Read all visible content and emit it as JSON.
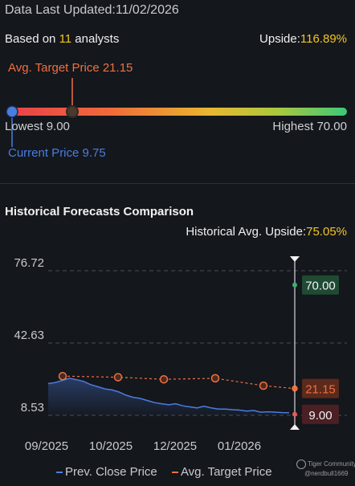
{
  "header": {
    "updated_label": "Data Last Updated:",
    "updated_date": "11/02/2026",
    "based_prefix": "Based on ",
    "analyst_count": "11",
    "based_suffix": " analysts",
    "upside_label": "Upside:",
    "upside_value": "116.89%"
  },
  "price_range": {
    "avg_target_label": "Avg. Target Price 21.15",
    "lowest_label": "Lowest 9.00",
    "highest_label": "Highest 70.00",
    "current_label": "Current Price 9.75",
    "low": 9.0,
    "high": 70.0,
    "current": 9.75,
    "avg_target": 21.15,
    "gradient_colors": [
      "#e8404a",
      "#f06a3a",
      "#e8b830",
      "#a8c840",
      "#3cc878"
    ]
  },
  "historical": {
    "title": "Historical Forecasts Comparison",
    "avg_upside_label": "Historical Avg. Upside:",
    "avg_upside_value": "75.05%"
  },
  "chart_data": {
    "type": "line",
    "yticks": [
      8.53,
      42.63,
      76.72
    ],
    "ytick_labels": [
      "8.53",
      "42.63",
      "76.72"
    ],
    "ylim": [
      8.53,
      76.72
    ],
    "x_tick_labels": [
      "09/2025",
      "10/2025",
      "12/2025",
      "01/2026"
    ],
    "series": [
      {
        "name": "Prev. Close Price",
        "color": "#4a7de0",
        "values": [
          23.5,
          24.0,
          25.0,
          26.0,
          25.3,
          24.5,
          23.0,
          22.0,
          21.0,
          20.5,
          19.5,
          18.0,
          17.0,
          16.5,
          15.5,
          14.5,
          14.0,
          13.5,
          14.0,
          13.0,
          12.5,
          12.0,
          12.8,
          12.0,
          11.5,
          11.5,
          11.2,
          11.0,
          10.5,
          10.8,
          10.0,
          10.2,
          10.0,
          9.8,
          9.75
        ]
      },
      {
        "name": "Avg. Target Price",
        "color": "#f07040",
        "points": [
          27.0,
          26.5,
          25.5,
          26.0,
          22.5,
          21.15
        ]
      }
    ],
    "forecast_high": {
      "value": 70.0,
      "label": "70.00",
      "color": "#3cb06e",
      "bg": "#1f4a33"
    },
    "forecast_avg": {
      "value": 21.15,
      "label": "21.15",
      "color": "#f07040",
      "bg": "#5a2a1c"
    },
    "forecast_low": {
      "value": 9.0,
      "label": "9.00",
      "color": "#e85a5a",
      "bg": "#4a2024"
    }
  },
  "legend": {
    "close_label": "Prev. Close Price",
    "target_label": "Avg. Target Price"
  },
  "watermark": {
    "brand": "Tiger Community",
    "user": "@nerdbull1669"
  }
}
